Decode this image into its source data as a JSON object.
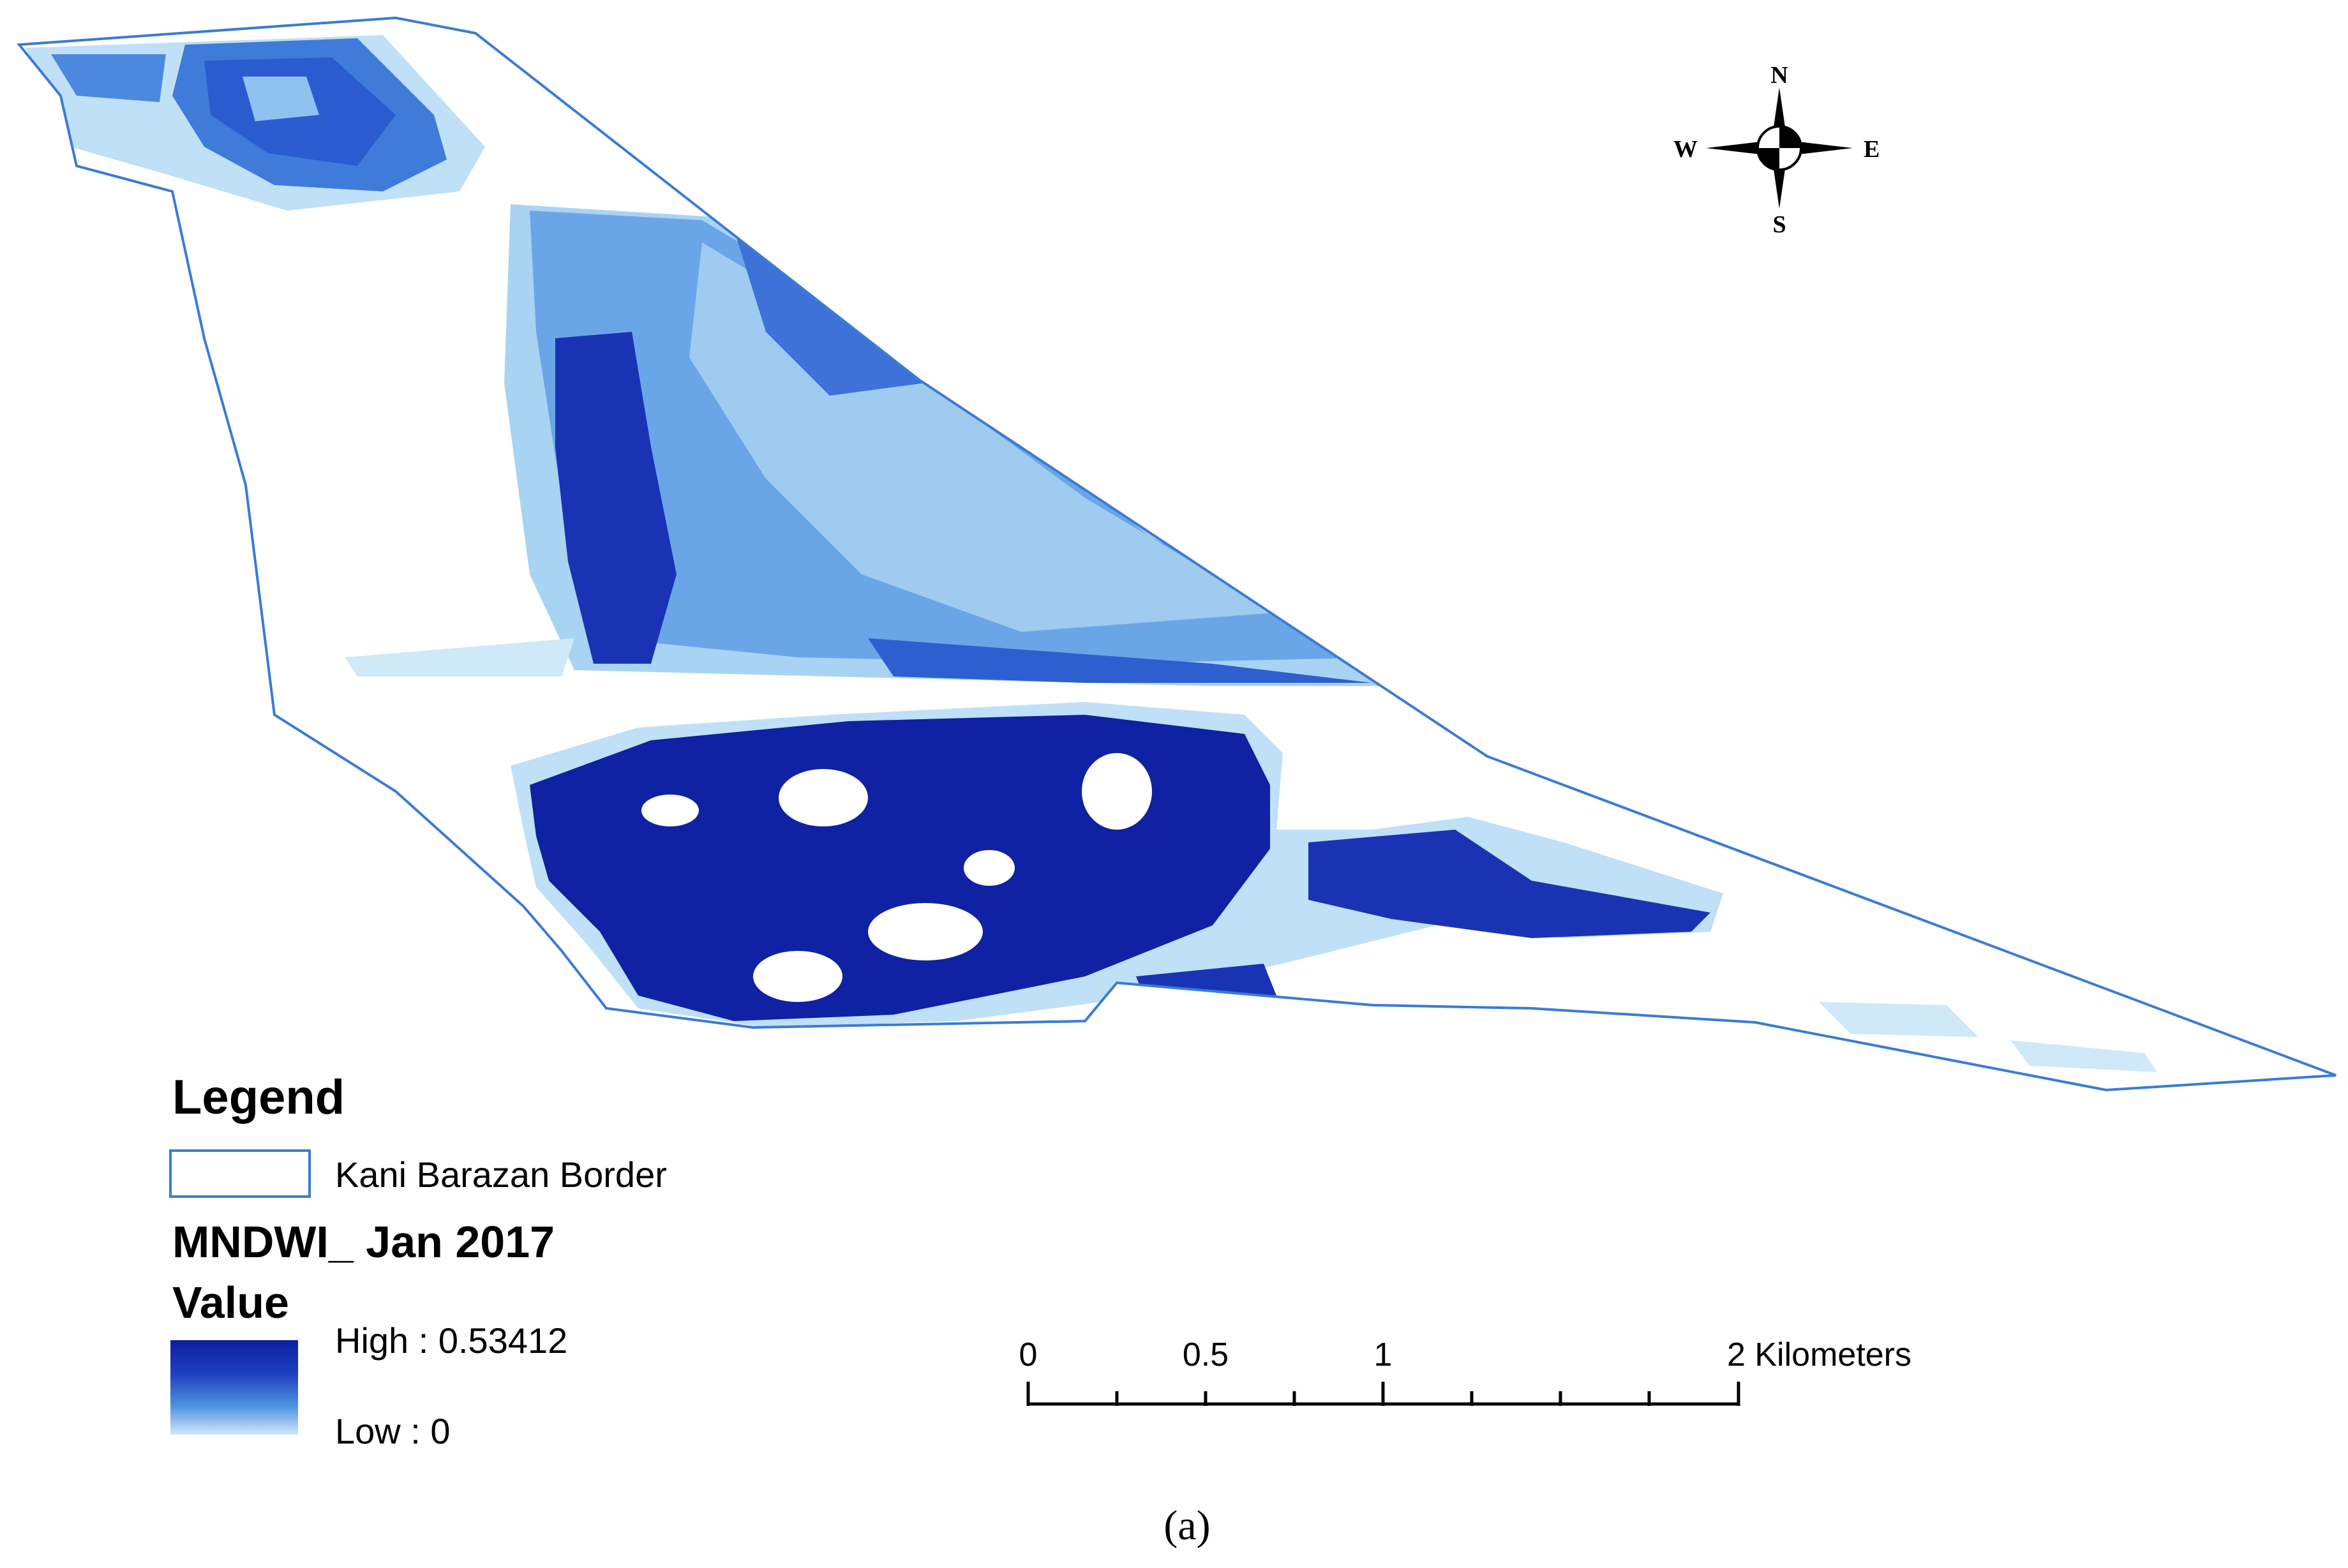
{
  "map": {
    "legend_title": "Legend",
    "border_label": "Kani Barazan Border",
    "layer_title": "MNDWI_ Jan 2017",
    "value_heading": "Value",
    "high_label": "High : 0.53412",
    "low_label": "Low : 0",
    "value_range": {
      "high": 0.53412,
      "low": 0
    },
    "ramp_colors": {
      "high": "#0d1f9e",
      "low": "#cfe9f8"
    },
    "border_color": "#3b7bd4",
    "north_arrow": {
      "n": "N",
      "s": "S",
      "e": "E",
      "w": "W"
    },
    "scale_bar": {
      "ticks": [
        "0",
        "0.5",
        "1"
      ],
      "end_label": "2 Kilometers",
      "max_km": 2
    },
    "caption": "(a)"
  }
}
